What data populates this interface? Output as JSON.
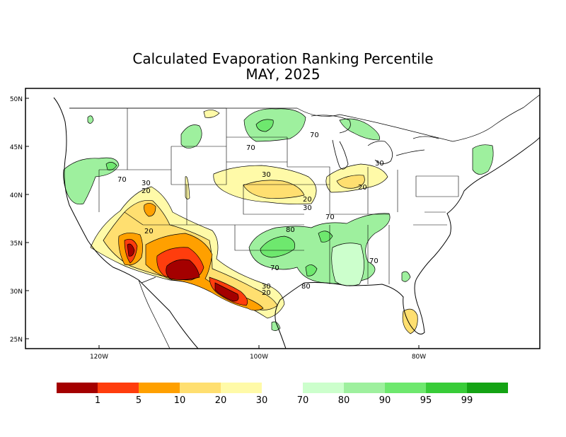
{
  "title": "Calculated Evaporation Ranking Percentile",
  "subtitle": "MAY, 2025",
  "map": {
    "lat_labels": [
      "50N",
      "45N",
      "40N",
      "35N",
      "30N",
      "25N"
    ],
    "lon_labels": [
      "120W",
      "100W",
      "80W"
    ],
    "contour_labels": [
      "70",
      "70",
      "70",
      "70",
      "30",
      "20",
      "30",
      "20",
      "20",
      "30",
      "30",
      "20",
      "70",
      "80",
      "70",
      "30",
      "20",
      "80"
    ]
  },
  "legend": {
    "tick_labels": [
      "1",
      "5",
      "10",
      "20",
      "30",
      "70",
      "80",
      "90",
      "95",
      "99"
    ],
    "dry_colors": [
      "#a40000",
      "#ff3d0d",
      "#ffa000",
      "#ffdf70",
      "#fffaa8"
    ],
    "wet_colors": [
      "#ccffcc",
      "#9ef09e",
      "#6ee86e",
      "#38cc38",
      "#14a314"
    ]
  }
}
